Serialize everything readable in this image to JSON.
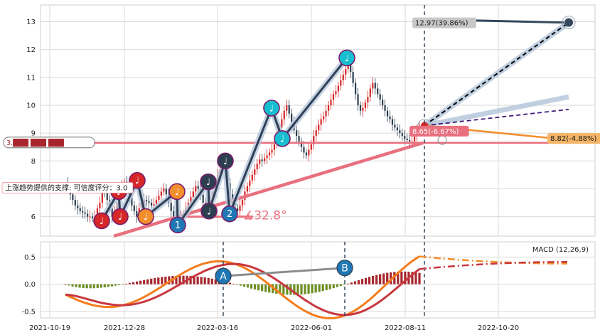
{
  "chart_data": {
    "type": "candlestick+macd",
    "colors": {
      "up": "#d62728",
      "down": "#2c3e50",
      "support": "#e9707f",
      "uptrend": "#2f3f55",
      "halo": "#b7c8dc",
      "arrow": "#34495e",
      "purple": "#3d1a78",
      "orange": "#f28e2b",
      "macd_line": "#f47c1c",
      "signal_line": "#c8373f",
      "hist_pos": "#a6262c",
      "hist_neg": "#6b8e23",
      "grid": "#d9d9d9"
    },
    "price_panel": {
      "ylim": [
        5.3,
        13.6
      ],
      "yticks": [
        6,
        7,
        8,
        9,
        10,
        11,
        12,
        13
      ],
      "support_level": 8.65,
      "support_label": "上涨趋势提供的支撑: 可信度评分：3.0",
      "support_left_badge": "3.███ ███ ███",
      "trend_angle_label": "∡32.8°",
      "target_high": {
        "label": "12.97(39.86%)",
        "value": 12.97
      },
      "target_mid": {
        "value": 10.3
      },
      "target_purple": {
        "value": 9.85
      },
      "target_low": {
        "label": "8.82(-4.88%)",
        "value": 8.82
      },
      "support_tag": {
        "label": "8.65(-6.67%)",
        "value": 8.65
      },
      "current_price": 9.27,
      "close_series": [
        7.2,
        7.0,
        6.8,
        6.6,
        6.4,
        6.3,
        6.2,
        6.15,
        6.1,
        6.0,
        6.0,
        5.95,
        6.0,
        6.3,
        6.5,
        6.9,
        6.85,
        6.6,
        6.3,
        6.0,
        6.2,
        6.5,
        6.85,
        7.1,
        7.25,
        7.0,
        6.7,
        6.4,
        6.2,
        6.0,
        6.3,
        6.5,
        6.6,
        6.55,
        6.5,
        6.4,
        6.45,
        6.6,
        6.75,
        6.9,
        7.0,
        6.8,
        6.5,
        6.2,
        6.0,
        5.9,
        5.95,
        6.0,
        6.1,
        6.3,
        6.5,
        6.7,
        6.9,
        7.1,
        7.0,
        6.8,
        6.5,
        6.35,
        6.4,
        6.6,
        6.9,
        7.2,
        7.5,
        7.7,
        7.8,
        7.6,
        7.2,
        6.8,
        6.5,
        6.3,
        6.2,
        6.4,
        6.6,
        6.9,
        7.1,
        7.3,
        7.5,
        7.7,
        7.9,
        8.05,
        8.0,
        8.1,
        8.2,
        8.3,
        8.4,
        8.6,
        8.9,
        9.2,
        9.5,
        9.8,
        10.0,
        9.7,
        9.4,
        9.1,
        8.9,
        8.7,
        8.5,
        8.3,
        8.2,
        8.4,
        8.6,
        8.9,
        9.1,
        9.3,
        9.5,
        9.6,
        9.8,
        10.0,
        10.2,
        10.4,
        10.5,
        10.7,
        10.9,
        11.1,
        11.3,
        11.5,
        11.2,
        10.8,
        10.4,
        10.0,
        9.8,
        9.9,
        10.1,
        10.3,
        10.6,
        10.8,
        10.6,
        10.4,
        10.2,
        10.0,
        9.8,
        9.6,
        9.5,
        9.3,
        9.2,
        9.1,
        9.0,
        8.9,
        8.8,
        8.75,
        8.7,
        8.7,
        8.9,
        9.1,
        9.27
      ]
    },
    "macd_panel": {
      "title": "MACD (12,26,9)",
      "ylim": [
        -0.62,
        0.78
      ],
      "yticks": [
        -0.5,
        0.0,
        0.5
      ],
      "markers": [
        {
          "label": "A"
        },
        {
          "label": "B"
        }
      ]
    },
    "pattern_markers": [
      {
        "label": "♩",
        "value": 5.85
      },
      {
        "label": "♩",
        "value": 6.9
      },
      {
        "label": "♩",
        "value": 6.0
      },
      {
        "label": "♩",
        "value": 7.3
      },
      {
        "label": "♩",
        "value": 6.0
      },
      {
        "label": "♩",
        "value": 6.9
      },
      {
        "label": "1",
        "value": 5.7
      },
      {
        "label": "♩",
        "value": 7.25
      },
      {
        "label": "♩",
        "value": 6.2
      },
      {
        "label": "♩",
        "value": 8.0
      },
      {
        "label": "2",
        "value": 6.1
      },
      {
        "label": "♩",
        "value": 9.9
      },
      {
        "label": "♩",
        "value": 8.8
      },
      {
        "label": "♩",
        "value": 11.7
      }
    ],
    "x_tick_labels": [
      "2021-10-19",
      "2021-12-28",
      "2022-03-16",
      "2022-06-01",
      "2022-08-11",
      "2022-10-20"
    ]
  }
}
